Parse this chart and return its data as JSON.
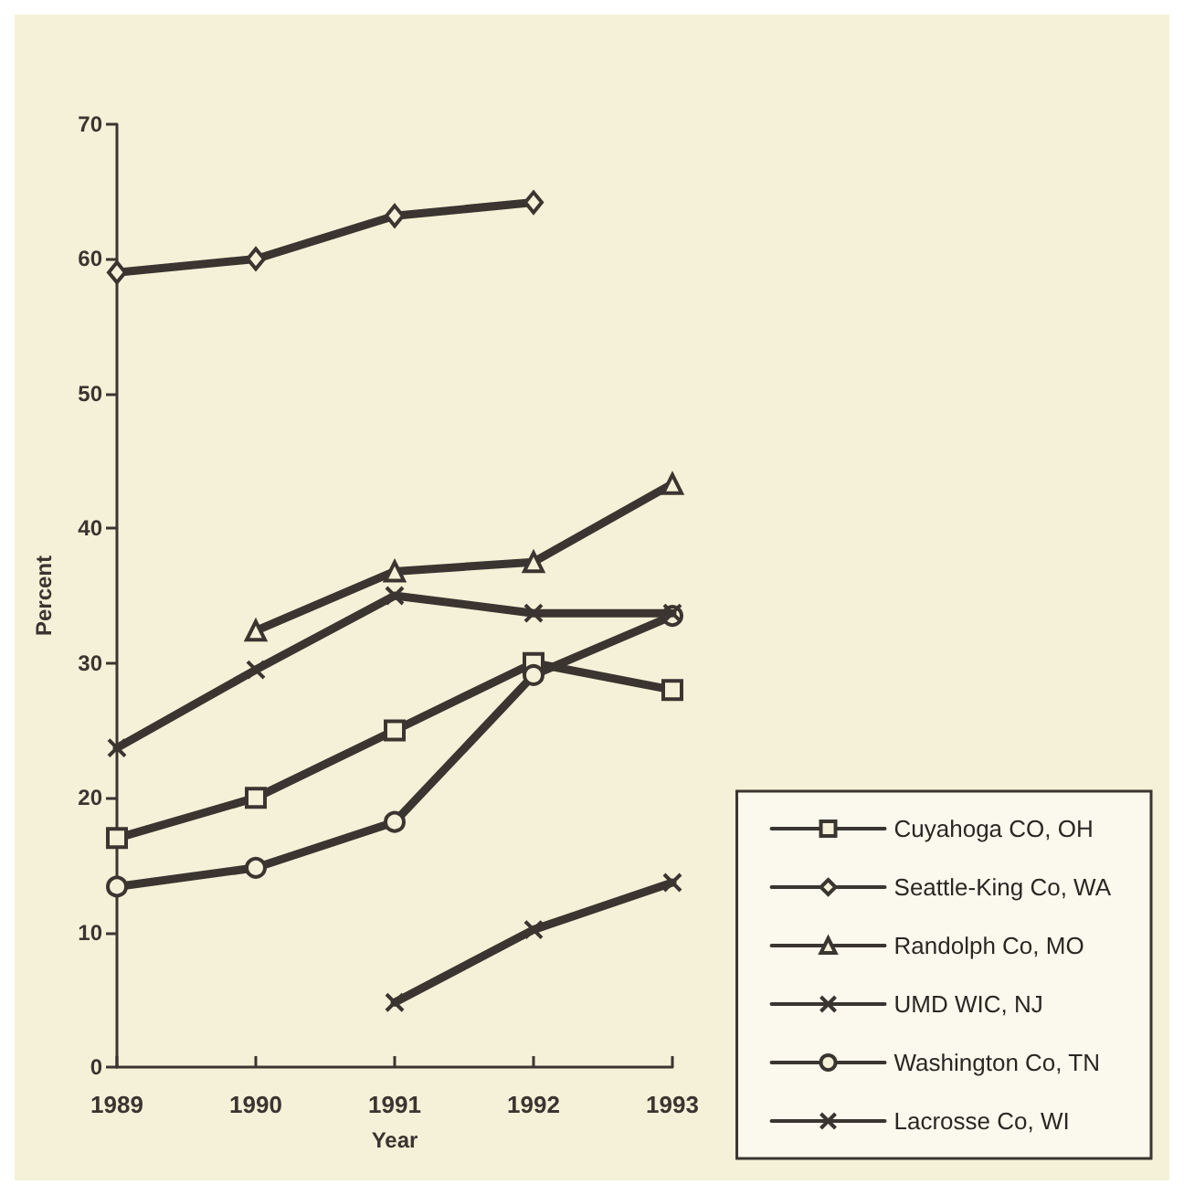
{
  "chart_data": {
    "type": "line",
    "xlabel": "Year",
    "ylabel": "Percent",
    "x": [
      1989,
      1990,
      1991,
      1992,
      1993
    ],
    "xlim": [
      1989,
      1993
    ],
    "xticks": [
      1989,
      1990,
      1991,
      1992,
      1993
    ],
    "ylim": [
      0,
      70
    ],
    "yticks": [
      0,
      10,
      20,
      30,
      40,
      50,
      60,
      70
    ],
    "grid": false,
    "legend": "bottom right",
    "line_style": "solid",
    "series": [
      {
        "name": "Cuyahoga CO, OH",
        "color": "#3a3530",
        "marker": "square",
        "values": [
          17,
          20,
          25,
          30,
          28
        ]
      },
      {
        "name": "Seattle-King Co, WA",
        "color": "#3a3530",
        "marker": "diamond",
        "values": [
          59,
          60,
          63.2,
          64.2,
          null
        ]
      },
      {
        "name": "Randolph Co, MO",
        "color": "#3a3530",
        "marker": "triangle",
        "values": [
          null,
          32.4,
          36.8,
          37.5,
          43.3
        ]
      },
      {
        "name": "UMD WIC, NJ",
        "color": "#3a3530",
        "marker": "cross",
        "values": [
          23.7,
          29.5,
          35,
          33.7,
          33.7
        ]
      },
      {
        "name": "Washington Co, TN",
        "color": "#3a3530",
        "marker": "circle",
        "values": [
          13.4,
          14.8,
          18.2,
          29.1,
          33.5
        ]
      },
      {
        "name": "Lacrosse Co, WI",
        "color": "#3a3530",
        "marker": "cross",
        "values": [
          null,
          null,
          4.8,
          10.2,
          13.7
        ]
      }
    ]
  }
}
